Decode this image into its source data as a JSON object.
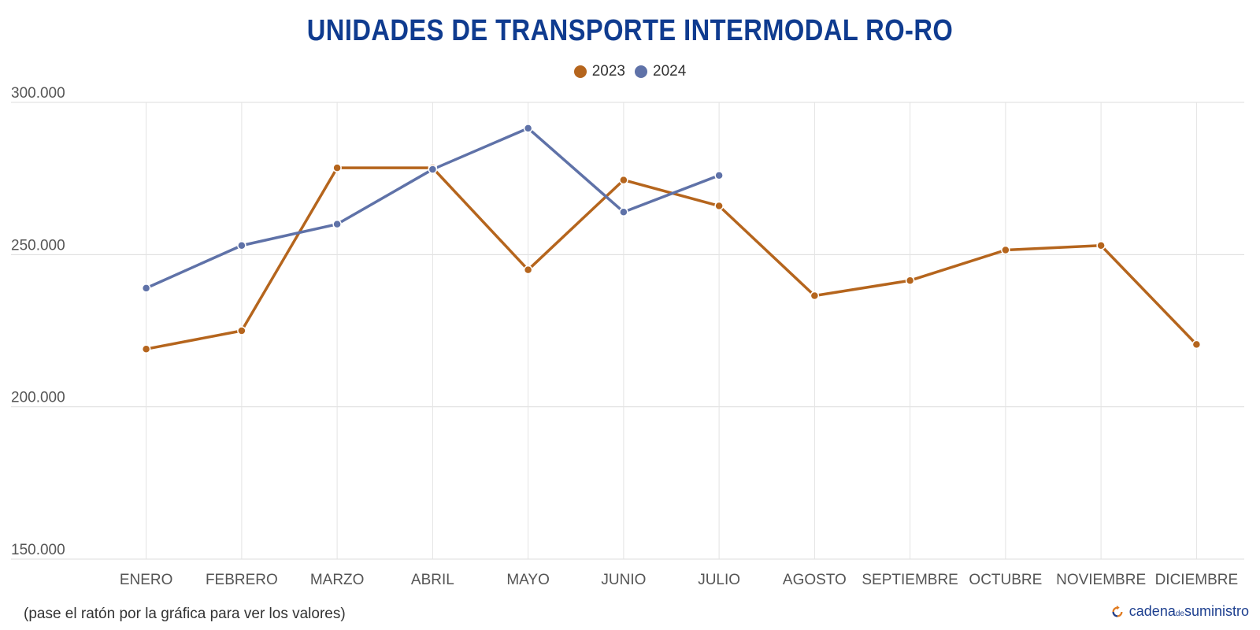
{
  "chart_data": {
    "type": "line",
    "title": "UNIDADES DE TRANSPORTE INTERMODAL RO-RO",
    "categories": [
      "ENERO",
      "FEBRERO",
      "MARZO",
      "ABRIL",
      "MAYO",
      "JUNIO",
      "JULIO",
      "AGOSTO",
      "SEPTIEMBRE",
      "OCTUBRE",
      "NOVIEMBRE",
      "DICIEMBRE"
    ],
    "series": [
      {
        "name": "2023",
        "color": "#b5651d",
        "values": [
          219000,
          225000,
          278500,
          278500,
          245000,
          274500,
          266000,
          236500,
          241500,
          251500,
          253000,
          220500
        ]
      },
      {
        "name": "2024",
        "color": "#5f72a8",
        "values": [
          239000,
          253000,
          260000,
          278000,
          291500,
          264000,
          276000,
          null,
          null,
          null,
          null,
          null
        ]
      }
    ],
    "ylim": [
      150000,
      300000
    ],
    "yticks": [
      150000,
      200000,
      250000,
      300000
    ],
    "ytick_labels": [
      "150.000",
      "200.000",
      "250.000",
      "300.000"
    ],
    "xlabel": "",
    "ylabel": "",
    "grid": true,
    "legend": "top-center"
  },
  "footnote": "(pase el ratón por la gráfica para ver los valores)",
  "brand": {
    "name_part1": "cadena",
    "name_small": "de",
    "name_part2": "suministro",
    "icon": "refresh-arrows-icon"
  }
}
